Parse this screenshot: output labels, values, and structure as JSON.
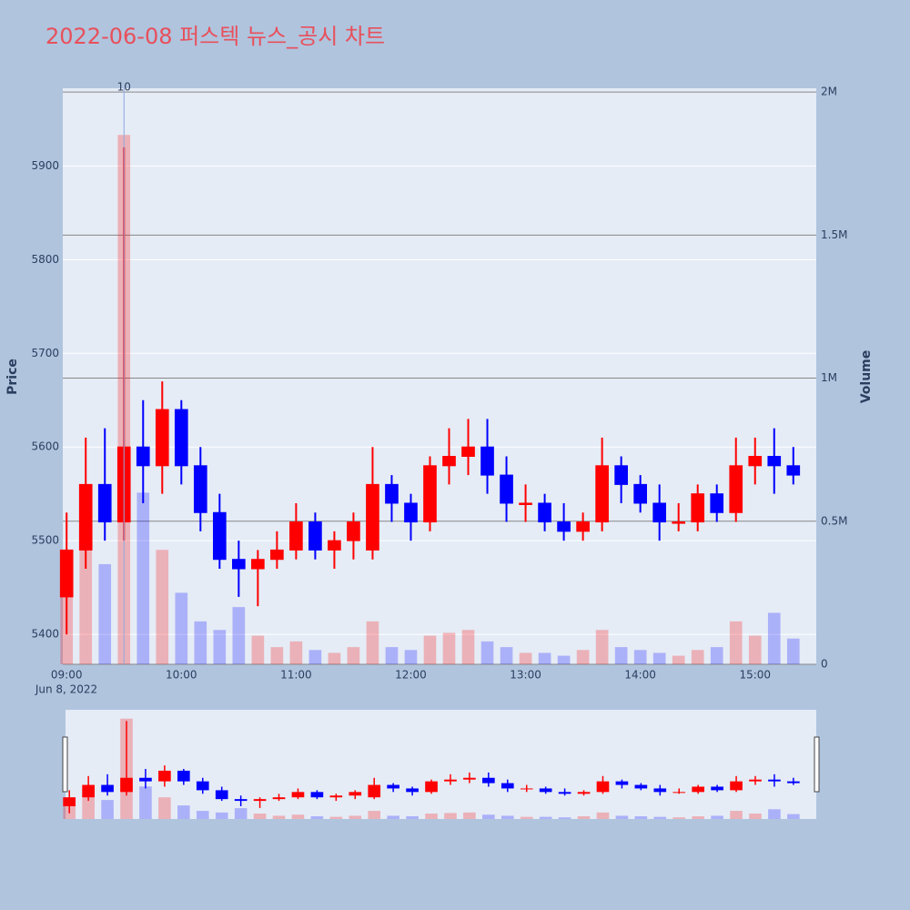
{
  "chart_data": {
    "type": "candlestick",
    "title": "2022-06-08 퍼스텍 뉴스_공시 차트",
    "ylabel": "Price",
    "y2label": "Volume",
    "x_sublabel": "Jun 8, 2022",
    "increasing_color": "#ff0000",
    "decreasing_color": "#0000ff",
    "x": [
      "2022-06-08 09:00",
      "2022-06-08 09:10",
      "2022-06-08 09:20",
      "2022-06-08 09:30",
      "2022-06-08 09:40",
      "2022-06-08 09:50",
      "2022-06-08 10:00",
      "2022-06-08 10:10",
      "2022-06-08 10:20",
      "2022-06-08 10:30",
      "2022-06-08 10:40",
      "2022-06-08 10:50",
      "2022-06-08 11:00",
      "2022-06-08 11:10",
      "2022-06-08 11:20",
      "2022-06-08 11:30",
      "2022-06-08 11:40",
      "2022-06-08 11:50",
      "2022-06-08 12:00",
      "2022-06-08 12:10",
      "2022-06-08 12:20",
      "2022-06-08 12:30",
      "2022-06-08 12:40",
      "2022-06-08 12:50",
      "2022-06-08 13:00",
      "2022-06-08 13:10",
      "2022-06-08 13:20",
      "2022-06-08 13:30",
      "2022-06-08 13:40",
      "2022-06-08 13:50",
      "2022-06-08 14:00",
      "2022-06-08 14:10",
      "2022-06-08 14:20",
      "2022-06-08 14:30",
      "2022-06-08 14:40",
      "2022-06-08 14:50",
      "2022-06-08 15:00",
      "2022-06-08 15:10",
      "2022-06-08 15:20"
    ],
    "open": [
      5440,
      5490,
      5560,
      5520,
      5600,
      5580,
      5640,
      5580,
      5530,
      5480,
      5470,
      5480,
      5490,
      5520,
      5490,
      5500,
      5490,
      5560,
      5540,
      5520,
      5580,
      5590,
      5600,
      5570,
      5540,
      5540,
      5520,
      5510,
      5520,
      5580,
      5560,
      5540,
      5520,
      5520,
      5550,
      5530,
      5580,
      5590,
      5580
    ],
    "high": [
      5530,
      5610,
      5620,
      5920,
      5650,
      5670,
      5650,
      5600,
      5550,
      5500,
      5490,
      5510,
      5540,
      5530,
      5510,
      5530,
      5600,
      5570,
      5550,
      5590,
      5620,
      5630,
      5630,
      5590,
      5560,
      5550,
      5540,
      5530,
      5610,
      5590,
      5570,
      5560,
      5540,
      5560,
      5560,
      5610,
      5610,
      5620,
      5600
    ],
    "low": [
      5400,
      5470,
      5500,
      5500,
      5540,
      5550,
      5560,
      5510,
      5470,
      5440,
      5430,
      5470,
      5480,
      5480,
      5470,
      5480,
      5480,
      5520,
      5500,
      5510,
      5560,
      5570,
      5550,
      5520,
      5520,
      5510,
      5500,
      5500,
      5510,
      5540,
      5530,
      5500,
      5510,
      5510,
      5520,
      5520,
      5560,
      5550,
      5560
    ],
    "close": [
      5490,
      5560,
      5520,
      5600,
      5580,
      5640,
      5580,
      5530,
      5480,
      5470,
      5480,
      5490,
      5520,
      5490,
      5500,
      5520,
      5560,
      5540,
      5520,
      5580,
      5590,
      5600,
      5570,
      5540,
      5540,
      5520,
      5510,
      5520,
      5580,
      5560,
      5540,
      5520,
      5520,
      5550,
      5530,
      5580,
      5590,
      5580,
      5570
    ],
    "volume": [
      400000,
      450000,
      350000,
      1850000,
      600000,
      400000,
      250000,
      150000,
      120000,
      200000,
      100000,
      60000,
      80000,
      50000,
      40000,
      60000,
      150000,
      60000,
      50000,
      100000,
      110000,
      120000,
      80000,
      60000,
      40000,
      40000,
      30000,
      50000,
      120000,
      60000,
      50000,
      40000,
      30000,
      50000,
      60000,
      150000,
      100000,
      180000,
      90000
    ],
    "xlim": [
      "2022-06-08 08:58",
      "2022-06-08 15:32"
    ],
    "xticks": [
      {
        "value": "2022-06-08 09:00",
        "label": "09:00"
      },
      {
        "value": "2022-06-08 10:00",
        "label": "10:00"
      },
      {
        "value": "2022-06-08 11:00",
        "label": "11:00"
      },
      {
        "value": "2022-06-08 12:00",
        "label": "12:00"
      },
      {
        "value": "2022-06-08 13:00",
        "label": "13:00"
      },
      {
        "value": "2022-06-08 14:00",
        "label": "14:00"
      },
      {
        "value": "2022-06-08 15:00",
        "label": "15:00"
      }
    ],
    "ylim": [
      5368,
      5983
    ],
    "yticks": [
      5400,
      5500,
      5600,
      5700,
      5800,
      5900
    ],
    "y2lim": [
      0,
      2013000
    ],
    "y2ticks": [
      0,
      {
        "value": 500000,
        "label": "0.5M"
      },
      {
        "value": 1000000,
        "label": "1M"
      },
      {
        "value": 1500000,
        "label": "1.5M"
      },
      {
        "value": 2000000,
        "label": "2M"
      }
    ],
    "annotations": [
      {
        "x": "2022-06-08 09:30",
        "text": "10"
      }
    ]
  }
}
